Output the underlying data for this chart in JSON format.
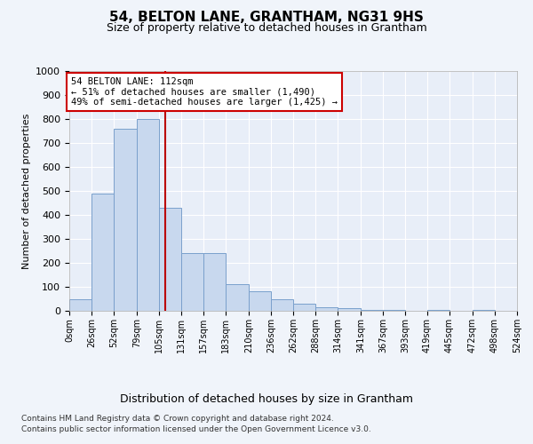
{
  "title": "54, BELTON LANE, GRANTHAM, NG31 9HS",
  "subtitle": "Size of property relative to detached houses in Grantham",
  "xlabel": "Distribution of detached houses by size in Grantham",
  "ylabel": "Number of detached properties",
  "bar_color": "#c8d8ee",
  "bar_edge_color": "#7aa0cc",
  "background_color": "#f0f4fa",
  "plot_bg_color": "#e8eef8",
  "grid_color": "#ffffff",
  "vline_x": 112,
  "vline_color": "#bb0000",
  "annotation_text": "54 BELTON LANE: 112sqm\n← 51% of detached houses are smaller (1,490)\n49% of semi-detached houses are larger (1,425) →",
  "annotation_box_facecolor": "#ffffff",
  "annotation_box_edge": "#cc0000",
  "bins": [
    0,
    26,
    52,
    79,
    105,
    131,
    157,
    183,
    210,
    236,
    262,
    288,
    314,
    341,
    367,
    393,
    419,
    445,
    472,
    498,
    524
  ],
  "bar_heights": [
    50,
    490,
    760,
    800,
    430,
    240,
    240,
    110,
    80,
    50,
    30,
    15,
    10,
    5,
    5,
    0,
    5,
    0,
    5,
    0
  ],
  "ylim": [
    0,
    1000
  ],
  "yticks": [
    0,
    100,
    200,
    300,
    400,
    500,
    600,
    700,
    800,
    900,
    1000
  ],
  "footer_line1": "Contains HM Land Registry data © Crown copyright and database right 2024.",
  "footer_line2": "Contains public sector information licensed under the Open Government Licence v3.0."
}
